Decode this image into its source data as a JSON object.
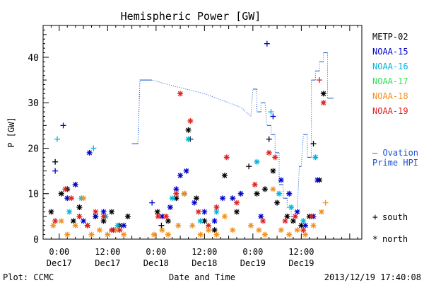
{
  "chart_data": {
    "type": "scatter",
    "title": "Hemispheric Power [GW]",
    "ylabel": "P [GW]",
    "xlabel": "Date and Time",
    "ylim": [
      0,
      47
    ],
    "xlim": [
      "2013-12-16T20:00",
      "2013-12-20T03:00"
    ],
    "yticks": [
      0,
      10,
      20,
      30,
      40
    ],
    "xticks": [
      {
        "t": "2013-12-17T00:00",
        "label1": "0:00",
        "label2": "Dec17"
      },
      {
        "t": "2013-12-17T12:00",
        "label1": "12:00",
        "label2": "Dec17"
      },
      {
        "t": "2013-12-18T00:00",
        "label1": "0:00",
        "label2": "Dec18"
      },
      {
        "t": "2013-12-18T12:00",
        "label1": "12:00",
        "label2": "Dec18"
      },
      {
        "t": "2013-12-19T00:00",
        "label1": "0:00",
        "label2": "Dec19"
      },
      {
        "t": "2013-12-19T12:00",
        "label1": "12:00",
        "label2": "Dec19"
      }
    ],
    "grid": false,
    "legend_position": "right",
    "series": [
      {
        "name": "METP-02",
        "color": "#000000",
        "points": [
          [
            "2013-12-16T22:00",
            6,
            "*"
          ],
          [
            "2013-12-16T23:00",
            17,
            "+"
          ],
          [
            "2013-12-17T00:30",
            10,
            "*"
          ],
          [
            "2013-12-17T02:00",
            11,
            "*"
          ],
          [
            "2013-12-17T03:30",
            4,
            "*"
          ],
          [
            "2013-12-17T05:00",
            7,
            "*"
          ],
          [
            "2013-12-17T07:00",
            3,
            "*"
          ],
          [
            "2013-12-17T09:00",
            5,
            "*"
          ],
          [
            "2013-12-17T11:00",
            4,
            "*"
          ],
          [
            "2013-12-17T13:00",
            6,
            "*"
          ],
          [
            "2013-12-17T15:00",
            3,
            "*"
          ],
          [
            "2013-12-17T17:00",
            5,
            "*"
          ],
          [
            "2013-12-18T00:20",
            6,
            "*"
          ],
          [
            "2013-12-18T01:20",
            3,
            "+"
          ],
          [
            "2013-12-18T03:00",
            4,
            "*"
          ],
          [
            "2013-12-18T05:00",
            9,
            "*"
          ],
          [
            "2013-12-18T07:00",
            10,
            "*"
          ],
          [
            "2013-12-18T08:00",
            24,
            "*"
          ],
          [
            "2013-12-18T08:30",
            22,
            "+"
          ],
          [
            "2013-12-18T10:00",
            9,
            "*"
          ],
          [
            "2013-12-18T12:00",
            4,
            "*"
          ],
          [
            "2013-12-18T14:30",
            2,
            "*"
          ],
          [
            "2013-12-18T17:00",
            14,
            "*"
          ],
          [
            "2013-12-18T20:00",
            6,
            "*"
          ],
          [
            "2013-12-18T23:00",
            16,
            "+"
          ],
          [
            "2013-12-19T01:00",
            10,
            "*"
          ],
          [
            "2013-12-19T03:00",
            11,
            "*"
          ],
          [
            "2013-12-19T04:00",
            22,
            "+"
          ],
          [
            "2013-12-19T05:00",
            15,
            "*"
          ],
          [
            "2013-12-19T06:00",
            8,
            "*"
          ],
          [
            "2013-12-19T08:30",
            5,
            "*"
          ],
          [
            "2013-12-19T10:00",
            4,
            "*"
          ],
          [
            "2013-12-19T12:00",
            3,
            "*"
          ],
          [
            "2013-12-19T14:00",
            5,
            "*"
          ],
          [
            "2013-12-19T15:00",
            21,
            "+"
          ],
          [
            "2013-12-19T16:30",
            13,
            "*"
          ],
          [
            "2013-12-19T17:30",
            32,
            "*"
          ]
        ]
      },
      {
        "name": "NOAA-15",
        "color": "#0000cc",
        "points": [
          [
            "2013-12-16T23:00",
            15,
            "+"
          ],
          [
            "2013-12-17T01:00",
            25,
            "+"
          ],
          [
            "2013-12-17T02:00",
            9,
            "*"
          ],
          [
            "2013-12-17T04:00",
            12,
            "*"
          ],
          [
            "2013-12-17T06:00",
            4,
            "*"
          ],
          [
            "2013-12-17T07:30",
            19,
            "*"
          ],
          [
            "2013-12-17T09:00",
            5,
            "*"
          ],
          [
            "2013-12-17T11:00",
            6,
            "*"
          ],
          [
            "2013-12-17T13:30",
            2,
            "*"
          ],
          [
            "2013-12-17T16:00",
            3,
            "*"
          ],
          [
            "2013-12-17T23:00",
            8,
            "+"
          ],
          [
            "2013-12-18T01:30",
            5,
            "*"
          ],
          [
            "2013-12-18T03:30",
            7,
            "*"
          ],
          [
            "2013-12-18T05:00",
            11,
            "*"
          ],
          [
            "2013-12-18T06:00",
            14,
            "*"
          ],
          [
            "2013-12-18T07:30",
            15,
            "*"
          ],
          [
            "2013-12-18T09:30",
            8,
            "*"
          ],
          [
            "2013-12-18T12:00",
            6,
            "*"
          ],
          [
            "2013-12-18T14:30",
            4,
            "*"
          ],
          [
            "2013-12-18T16:30",
            9,
            "*"
          ],
          [
            "2013-12-18T19:00",
            9,
            "*"
          ],
          [
            "2013-12-18T21:00",
            10,
            "*"
          ],
          [
            "2013-12-19T02:00",
            5,
            "*"
          ],
          [
            "2013-12-19T03:30",
            43,
            "+"
          ],
          [
            "2013-12-19T05:00",
            27,
            "+"
          ],
          [
            "2013-12-19T07:00",
            13,
            "*"
          ],
          [
            "2013-12-19T09:00",
            10,
            "*"
          ],
          [
            "2013-12-19T11:00",
            6,
            "*"
          ],
          [
            "2013-12-19T13:00",
            3,
            "*"
          ],
          [
            "2013-12-19T15:00",
            5,
            "*"
          ],
          [
            "2013-12-19T16:00",
            13,
            "*"
          ]
        ]
      },
      {
        "name": "NOAA-16",
        "color": "#00b4d8",
        "points": [
          [
            "2013-12-16T23:30",
            22,
            "+"
          ],
          [
            "2013-12-17T02:30",
            6,
            "*"
          ],
          [
            "2013-12-17T05:30",
            9,
            "*"
          ],
          [
            "2013-12-17T08:30",
            20,
            "+"
          ],
          [
            "2013-12-17T11:30",
            5,
            "*"
          ],
          [
            "2013-12-17T14:30",
            3,
            "*"
          ],
          [
            "2013-12-18T04:00",
            9,
            "*"
          ],
          [
            "2013-12-18T08:00",
            22,
            "*"
          ],
          [
            "2013-12-18T11:00",
            4,
            "*"
          ],
          [
            "2013-12-18T15:00",
            6,
            "*"
          ],
          [
            "2013-12-19T01:00",
            17,
            "*"
          ],
          [
            "2013-12-19T04:30",
            28,
            "+"
          ],
          [
            "2013-12-19T06:30",
            10,
            "*"
          ],
          [
            "2013-12-19T09:30",
            7,
            "*"
          ],
          [
            "2013-12-19T12:30",
            4,
            "*"
          ],
          [
            "2013-12-19T15:30",
            18,
            "*"
          ]
        ]
      },
      {
        "name": "NOAA-17",
        "color": "#33e05a",
        "points": []
      },
      {
        "name": "NOAA-18",
        "color": "#f09020",
        "points": [
          [
            "2013-12-16T22:30",
            3,
            "*"
          ],
          [
            "2013-12-17T00:30",
            4,
            "*"
          ],
          [
            "2013-12-17T02:00",
            1,
            "*"
          ],
          [
            "2013-12-17T04:00",
            3,
            "*"
          ],
          [
            "2013-12-17T06:00",
            9,
            "*"
          ],
          [
            "2013-12-17T08:00",
            1,
            "*"
          ],
          [
            "2013-12-17T10:00",
            2,
            "*"
          ],
          [
            "2013-12-17T12:00",
            1,
            "*"
          ],
          [
            "2013-12-17T14:00",
            2,
            "*"
          ],
          [
            "2013-12-17T16:00",
            1,
            "*"
          ],
          [
            "2013-12-17T23:30",
            1,
            "*"
          ],
          [
            "2013-12-18T01:30",
            2,
            "*"
          ],
          [
            "2013-12-18T03:00",
            1,
            "*"
          ],
          [
            "2013-12-18T05:30",
            3,
            "*"
          ],
          [
            "2013-12-18T07:00",
            10,
            "*"
          ],
          [
            "2013-12-18T09:00",
            3,
            "*"
          ],
          [
            "2013-12-18T11:00",
            1,
            "*"
          ],
          [
            "2013-12-18T13:00",
            2,
            "*"
          ],
          [
            "2013-12-18T15:00",
            1,
            "*"
          ],
          [
            "2013-12-18T17:00",
            5,
            "*"
          ],
          [
            "2013-12-18T19:00",
            2,
            "*"
          ],
          [
            "2013-12-18T23:30",
            3,
            "*"
          ],
          [
            "2013-12-19T01:30",
            2,
            "*"
          ],
          [
            "2013-12-19T03:00",
            1,
            "*"
          ],
          [
            "2013-12-19T05:00",
            11,
            "*"
          ],
          [
            "2013-12-19T07:00",
            2,
            "*"
          ],
          [
            "2013-12-19T09:00",
            1,
            "*"
          ],
          [
            "2013-12-19T11:00",
            2,
            "*"
          ],
          [
            "2013-12-19T13:00",
            1,
            "*"
          ],
          [
            "2013-12-19T15:00",
            3,
            "*"
          ],
          [
            "2013-12-19T17:00",
            6,
            "*"
          ],
          [
            "2013-12-19T18:00",
            8,
            "+"
          ]
        ]
      },
      {
        "name": "NOAA-19",
        "color": "#e02020",
        "points": [
          [
            "2013-12-16T23:00",
            4,
            "*"
          ],
          [
            "2013-12-17T01:30",
            11,
            "*"
          ],
          [
            "2013-12-17T03:00",
            9,
            "*"
          ],
          [
            "2013-12-17T05:00",
            5,
            "*"
          ],
          [
            "2013-12-17T07:00",
            3,
            "*"
          ],
          [
            "2013-12-17T09:00",
            6,
            "*"
          ],
          [
            "2013-12-17T11:00",
            5,
            "*"
          ],
          [
            "2013-12-17T13:00",
            2,
            "*"
          ],
          [
            "2013-12-17T15:00",
            2,
            "*"
          ],
          [
            "2013-12-18T00:30",
            5,
            "*"
          ],
          [
            "2013-12-18T02:30",
            5,
            "*"
          ],
          [
            "2013-12-18T05:00",
            10,
            "*"
          ],
          [
            "2013-12-18T06:00",
            32,
            "*"
          ],
          [
            "2013-12-18T08:30",
            26,
            "*"
          ],
          [
            "2013-12-18T10:30",
            6,
            "*"
          ],
          [
            "2013-12-18T13:00",
            3,
            "*"
          ],
          [
            "2013-12-18T15:00",
            7,
            "*"
          ],
          [
            "2013-12-18T17:30",
            18,
            "*"
          ],
          [
            "2013-12-18T20:00",
            8,
            "*"
          ],
          [
            "2013-12-19T00:30",
            12,
            "*"
          ],
          [
            "2013-12-19T02:30",
            4,
            "*"
          ],
          [
            "2013-12-19T04:00",
            19,
            "*"
          ],
          [
            "2013-12-19T05:30",
            18,
            "*"
          ],
          [
            "2013-12-19T08:00",
            4,
            "*"
          ],
          [
            "2013-12-19T10:30",
            5,
            "*"
          ],
          [
            "2013-12-19T12:30",
            2,
            "*"
          ],
          [
            "2013-12-19T14:30",
            5,
            "*"
          ],
          [
            "2013-12-19T16:30",
            35,
            "+"
          ],
          [
            "2013-12-19T17:30",
            30,
            "*"
          ]
        ]
      }
    ],
    "ovation": {
      "name": "Ovation Prime HPI",
      "color": "#1a55cc",
      "legend_label_1": "– Ovation",
      "legend_label_2": "Prime HPI",
      "segments": [
        [
          [
            "2013-12-17T18:00",
            21
          ],
          [
            "2013-12-17T19:30",
            21
          ]
        ],
        [
          [
            "2013-12-17T20:00",
            35
          ],
          [
            "2013-12-17T23:00",
            35
          ]
        ],
        [
          [
            "2013-12-19T00:00",
            33
          ],
          [
            "2013-12-19T01:00",
            33
          ]
        ],
        [
          [
            "2013-12-19T01:00",
            28
          ],
          [
            "2013-12-19T02:00",
            28
          ]
        ],
        [
          [
            "2013-12-19T02:00",
            30
          ],
          [
            "2013-12-19T03:00",
            30
          ]
        ],
        [
          [
            "2013-12-19T03:30",
            25
          ],
          [
            "2013-12-19T04:30",
            25
          ]
        ],
        [
          [
            "2013-12-19T04:30",
            23
          ],
          [
            "2013-12-19T05:30",
            23
          ]
        ],
        [
          [
            "2013-12-19T05:30",
            19
          ],
          [
            "2013-12-19T06:30",
            19
          ]
        ],
        [
          [
            "2013-12-19T06:30",
            12
          ],
          [
            "2013-12-19T07:30",
            12
          ]
        ],
        [
          [
            "2013-12-19T07:30",
            9
          ],
          [
            "2013-12-19T08:30",
            9
          ]
        ],
        [
          [
            "2013-12-19T08:30",
            7
          ],
          [
            "2013-12-19T09:30",
            7
          ]
        ],
        [
          [
            "2013-12-19T09:30",
            5
          ],
          [
            "2013-12-19T10:30",
            5
          ]
        ],
        [
          [
            "2013-12-19T10:30",
            6
          ],
          [
            "2013-12-19T11:00",
            6
          ]
        ],
        [
          [
            "2013-12-19T11:30",
            16
          ],
          [
            "2013-12-19T12:00",
            16
          ]
        ],
        [
          [
            "2013-12-19T12:30",
            23
          ],
          [
            "2013-12-19T13:30",
            23
          ]
        ],
        [
          [
            "2013-12-19T13:30",
            18
          ],
          [
            "2013-12-19T14:30",
            18
          ]
        ],
        [
          [
            "2013-12-19T14:30",
            35
          ],
          [
            "2013-12-19T15:30",
            35
          ]
        ],
        [
          [
            "2013-12-19T15:30",
            37
          ],
          [
            "2013-12-19T16:30",
            37
          ]
        ],
        [
          [
            "2013-12-19T16:30",
            39
          ],
          [
            "2013-12-19T17:30",
            39
          ]
        ],
        [
          [
            "2013-12-19T17:30",
            41
          ],
          [
            "2013-12-19T18:30",
            41
          ]
        ],
        [
          [
            "2013-12-19T18:30",
            31
          ],
          [
            "2013-12-19T20:00",
            31
          ]
        ]
      ],
      "dotted": [
        [
          "2013-12-17T19:30",
          21
        ],
        [
          "2013-12-17T20:00",
          35
        ],
        [
          "2013-12-17T23:00",
          35
        ],
        [
          "2013-12-18T03:00",
          34
        ],
        [
          "2013-12-18T12:00",
          32
        ],
        [
          "2013-12-18T21:00",
          29
        ],
        [
          "2013-12-18T23:30",
          27
        ],
        [
          "2013-12-19T00:00",
          33
        ]
      ]
    }
  },
  "legend": {
    "south_symbol": "+",
    "south_label": "south",
    "north_symbol": "*",
    "north_label": "north"
  },
  "footer": {
    "plot_label": "Plot: CCMC",
    "timestamp": "2013/12/19 17:40:08"
  }
}
